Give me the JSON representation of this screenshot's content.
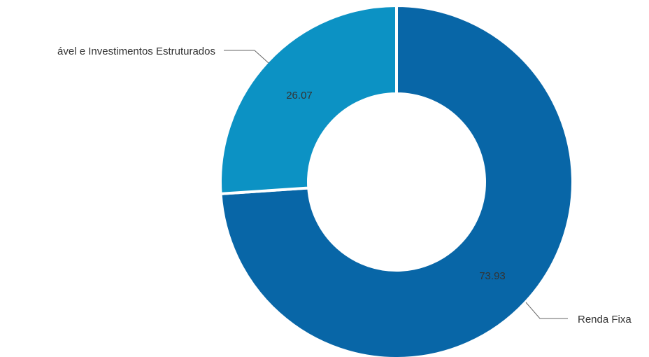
{
  "chart_data": {
    "type": "pie",
    "variant": "donut",
    "categories": [
      "Renda Fixa",
      "ável e Investimentos Estruturados"
    ],
    "values": [
      73.93,
      26.07
    ],
    "value_labels": [
      "73.93",
      "26.07"
    ],
    "colors": [
      "#0866a7",
      "#0c92c4"
    ],
    "title": "",
    "legend": "none"
  }
}
